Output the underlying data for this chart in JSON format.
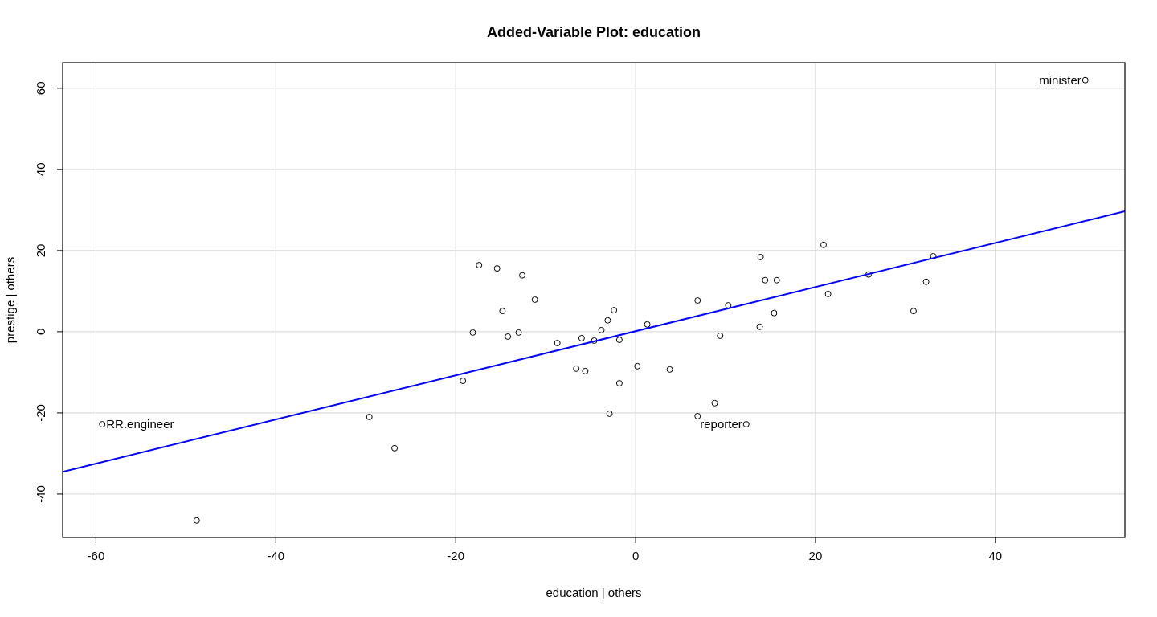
{
  "chart_data": {
    "type": "scatter",
    "title": "Added-Variable Plot: education",
    "xlabel": "education | others",
    "ylabel": "prestige  | others",
    "xlim": [
      -63.7,
      54.4
    ],
    "ylim": [
      -50.7,
      66.3
    ],
    "xticks": [
      -60,
      -40,
      -20,
      0,
      20,
      40
    ],
    "yticks": [
      -40,
      -20,
      0,
      20,
      40,
      60
    ],
    "grid": true,
    "series": [
      {
        "marker": "circle",
        "color": "#000000",
        "x": [
          -59.3,
          -48.8,
          -29.6,
          -26.8,
          -19.2,
          -18.1,
          -17.4,
          -15.4,
          -14.8,
          -14.2,
          -13.0,
          -12.6,
          -11.2,
          -8.7,
          -6.6,
          -6.0,
          -5.6,
          -4.6,
          -3.8,
          -3.1,
          -2.9,
          -2.4,
          -1.8,
          -1.8,
          0.2,
          1.3,
          3.8,
          6.9,
          6.9,
          8.8,
          9.4,
          10.3,
          12.3,
          13.8,
          13.9,
          14.4,
          15.4,
          15.7,
          20.9,
          21.4,
          25.9,
          30.9,
          32.3,
          33.1,
          50.0
        ],
        "values": [
          -22.8,
          -46.5,
          -21.0,
          -28.7,
          -12.1,
          -0.2,
          16.4,
          15.6,
          5.1,
          -1.2,
          -0.2,
          13.9,
          7.9,
          -2.8,
          -9.1,
          -1.6,
          -9.7,
          -2.2,
          0.4,
          2.8,
          -20.2,
          5.3,
          -2.0,
          -12.7,
          -8.5,
          1.8,
          -9.3,
          7.7,
          -20.8,
          -17.6,
          -1.0,
          6.5,
          -22.8,
          1.2,
          18.4,
          12.7,
          4.6,
          12.7,
          21.4,
          9.3,
          14.1,
          5.1,
          12.3,
          18.6,
          62.0
        ]
      },
      {
        "type": "line",
        "color": "#0000ff",
        "x": [
          -63.7,
          54.4
        ],
        "values": [
          -34.5,
          29.7
        ]
      }
    ],
    "annotations": [
      {
        "text": "RR.engineer",
        "x": -59.3,
        "y": -22.8
      },
      {
        "text": "reporter",
        "x": 12.3,
        "y": -22.8
      },
      {
        "text": "minister",
        "x": 50.0,
        "y": 62.0
      }
    ]
  }
}
